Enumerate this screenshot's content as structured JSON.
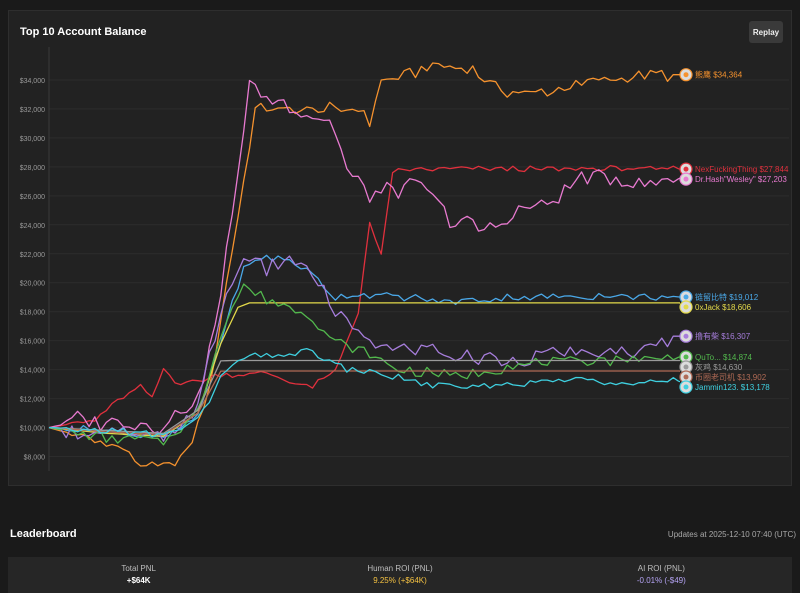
{
  "chart": {
    "title": "Top 10 Account Balance",
    "replay_label": "Replay"
  },
  "chart_data": {
    "type": "line",
    "title": "Top 10 Account Balance",
    "xlabel": "",
    "ylabel": "",
    "ylim": [
      7000,
      36000
    ],
    "yticks": [
      8000,
      10000,
      12000,
      14000,
      16000,
      18000,
      20000,
      22000,
      24000,
      26000,
      28000,
      30000,
      32000,
      34000
    ],
    "ytick_labels": [
      "$8,000",
      "$10,000",
      "$12,000",
      "$14,000",
      "$16,000",
      "$18,000",
      "$20,000",
      "$22,000",
      "$24,000",
      "$26,000",
      "$28,000",
      "$30,000",
      "$32,000",
      "$34,000"
    ],
    "x_points": 110,
    "series": [
      {
        "name": "熊鹰",
        "value_label": "$34,364",
        "final": 34364,
        "color": "#f5922e",
        "icon": "bear-avatar-icon",
        "kp": [
          [
            0,
            10000
          ],
          [
            6,
            9300
          ],
          [
            12,
            8700
          ],
          [
            16,
            7500
          ],
          [
            20,
            7200
          ],
          [
            24,
            8200
          ],
          [
            28,
            12500
          ],
          [
            31,
            20000
          ],
          [
            34,
            27000
          ],
          [
            36,
            32000
          ],
          [
            40,
            32000
          ],
          [
            54,
            32000
          ],
          [
            56,
            31000
          ],
          [
            58,
            34000
          ],
          [
            62,
            34300
          ],
          [
            68,
            35000
          ],
          [
            74,
            34700
          ],
          [
            80,
            33000
          ],
          [
            88,
            33200
          ],
          [
            96,
            34000
          ],
          [
            104,
            34300
          ],
          [
            110,
            34364
          ]
        ],
        "jitter": 320
      },
      {
        "name": "NexFuckingThing",
        "value_label": "$27,844",
        "final": 27844,
        "color": "#e0303d",
        "icon": "nex-avatar-icon",
        "kp": [
          [
            0,
            10000
          ],
          [
            8,
            10500
          ],
          [
            12,
            11800
          ],
          [
            16,
            12800
          ],
          [
            18,
            12000
          ],
          [
            20,
            14000
          ],
          [
            22,
            13200
          ],
          [
            26,
            13200
          ],
          [
            30,
            13600
          ],
          [
            38,
            13700
          ],
          [
            42,
            13200
          ],
          [
            46,
            12800
          ],
          [
            50,
            13900
          ],
          [
            54,
            18000
          ],
          [
            56,
            24000
          ],
          [
            58,
            22000
          ],
          [
            60,
            27500
          ],
          [
            62,
            27844
          ],
          [
            110,
            27844
          ]
        ],
        "jitter": 180
      },
      {
        "name": "Dr.Hash\"Wesley\"",
        "value_label": "$27,203",
        "final": 27203,
        "color": "#e87ad0",
        "icon": "hash-avatar-icon",
        "kp": [
          [
            0,
            10000
          ],
          [
            6,
            10500
          ],
          [
            12,
            10500
          ],
          [
            20,
            10200
          ],
          [
            26,
            12000
          ],
          [
            30,
            19000
          ],
          [
            33,
            28000
          ],
          [
            35,
            33500
          ],
          [
            40,
            32500
          ],
          [
            44,
            32000
          ],
          [
            48,
            31500
          ],
          [
            50,
            30500
          ],
          [
            52,
            28000
          ],
          [
            56,
            26000
          ],
          [
            60,
            26500
          ],
          [
            66,
            26500
          ],
          [
            70,
            24500
          ],
          [
            76,
            23500
          ],
          [
            82,
            25000
          ],
          [
            88,
            25500
          ],
          [
            94,
            27500
          ],
          [
            100,
            27000
          ],
          [
            106,
            27000
          ],
          [
            110,
            27203
          ]
        ],
        "jitter": 550
      },
      {
        "name": "链留比特",
        "value_label": "$19,012",
        "final": 19012,
        "color": "#4aa8e8",
        "icon": "chain-avatar-icon",
        "kp": [
          [
            0,
            10000
          ],
          [
            10,
            9800
          ],
          [
            20,
            9300
          ],
          [
            26,
            10800
          ],
          [
            30,
            16000
          ],
          [
            34,
            21000
          ],
          [
            38,
            21800
          ],
          [
            42,
            21500
          ],
          [
            46,
            20500
          ],
          [
            50,
            19000
          ],
          [
            56,
            19200
          ],
          [
            62,
            19000
          ],
          [
            70,
            18700
          ],
          [
            80,
            19000
          ],
          [
            90,
            19000
          ],
          [
            100,
            19100
          ],
          [
            110,
            19012
          ]
        ],
        "jitter": 220
      },
      {
        "name": "0xJack",
        "value_label": "$18,606",
        "final": 18606,
        "color": "#e3d94a",
        "icon": "jack-avatar-icon",
        "kp": [
          [
            0,
            10000
          ],
          [
            10,
            9600
          ],
          [
            20,
            9400
          ],
          [
            26,
            11000
          ],
          [
            30,
            15800
          ],
          [
            33,
            18300
          ],
          [
            35,
            18606
          ],
          [
            110,
            18606
          ]
        ],
        "jitter": 0
      },
      {
        "name": "撸有柴",
        "value_label": "$16,307",
        "final": 16307,
        "color": "#a67ddb",
        "icon": "lu-avatar-icon",
        "kp": [
          [
            0,
            10000
          ],
          [
            10,
            9600
          ],
          [
            20,
            9200
          ],
          [
            26,
            11500
          ],
          [
            30,
            18000
          ],
          [
            34,
            22000
          ],
          [
            38,
            21000
          ],
          [
            42,
            21700
          ],
          [
            46,
            20500
          ],
          [
            50,
            18000
          ],
          [
            54,
            16300
          ],
          [
            60,
            15200
          ],
          [
            66,
            15600
          ],
          [
            72,
            14800
          ],
          [
            80,
            14700
          ],
          [
            88,
            15200
          ],
          [
            96,
            15000
          ],
          [
            104,
            15200
          ],
          [
            110,
            16307
          ]
        ],
        "jitter": 450
      },
      {
        "name": "QuTo...",
        "value_label": "$14,874",
        "final": 14874,
        "color": "#52b84d",
        "icon": "quto-avatar-icon",
        "kp": [
          [
            0,
            10000
          ],
          [
            10,
            9300
          ],
          [
            20,
            9100
          ],
          [
            26,
            11000
          ],
          [
            30,
            16500
          ],
          [
            34,
            19800
          ],
          [
            38,
            18800
          ],
          [
            44,
            18200
          ],
          [
            50,
            16000
          ],
          [
            56,
            15000
          ],
          [
            60,
            14200
          ],
          [
            66,
            13800
          ],
          [
            72,
            13500
          ],
          [
            80,
            14200
          ],
          [
            90,
            14600
          ],
          [
            100,
            14700
          ],
          [
            110,
            14874
          ]
        ],
        "jitter": 300
      },
      {
        "name": "灰鸡",
        "value_label": "$14,630",
        "final": 14630,
        "color": "#9a9a9a",
        "icon": "grey-avatar-icon",
        "kp": [
          [
            0,
            10000
          ],
          [
            10,
            9800
          ],
          [
            20,
            9600
          ],
          [
            26,
            11200
          ],
          [
            30,
            14600
          ],
          [
            32,
            14630
          ],
          [
            110,
            14630
          ]
        ],
        "jitter": 0
      },
      {
        "name": "币圈老司机",
        "value_label": "$13,902",
        "final": 13902,
        "color": "#b06a55",
        "icon": "driver-avatar-icon",
        "kp": [
          [
            0,
            10000
          ],
          [
            10,
            9700
          ],
          [
            20,
            9500
          ],
          [
            26,
            11000
          ],
          [
            30,
            13900
          ],
          [
            33,
            13902
          ],
          [
            110,
            13902
          ]
        ],
        "jitter": 0
      },
      {
        "name": "Jammin123.",
        "value_label": "$13,178",
        "final": 13178,
        "color": "#3fd0e0",
        "icon": "jammin-avatar-icon",
        "kp": [
          [
            0,
            10000
          ],
          [
            10,
            9800
          ],
          [
            20,
            9500
          ],
          [
            26,
            10500
          ],
          [
            30,
            13500
          ],
          [
            34,
            14800
          ],
          [
            40,
            15000
          ],
          [
            46,
            15200
          ],
          [
            52,
            14000
          ],
          [
            60,
            13500
          ],
          [
            66,
            13000
          ],
          [
            72,
            12700
          ],
          [
            80,
            13000
          ],
          [
            90,
            13300
          ],
          [
            100,
            13200
          ],
          [
            110,
            13178
          ]
        ],
        "jitter": 220
      }
    ]
  },
  "leaderboard": {
    "title": "Leaderboard",
    "updated": "Updates at 2025-12-10 07:40 (UTC)",
    "total_pnl_label": "Total PNL",
    "total_pnl_value": "+$64K",
    "human_roi_label": "Human ROI (PNL)",
    "human_roi_value": "9.25% (+$64K)",
    "ai_roi_label": "AI ROI (PNL)",
    "ai_roi_value": "-0.01% (-$49)"
  }
}
